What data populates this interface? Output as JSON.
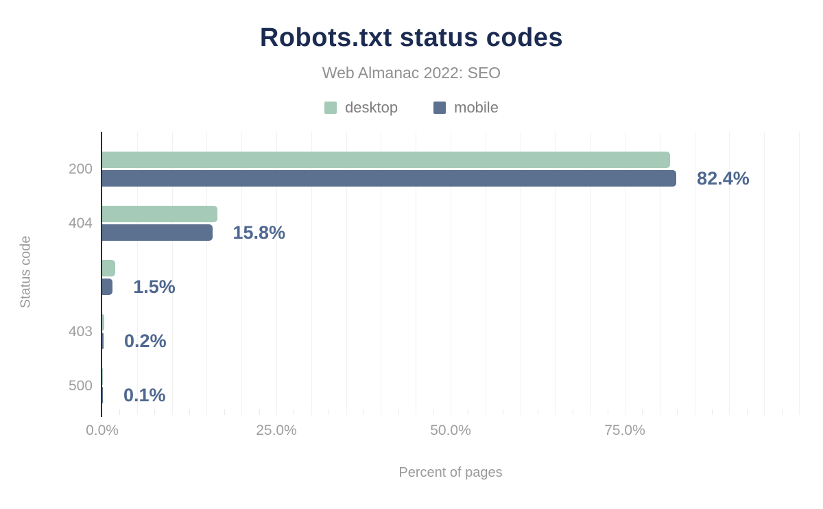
{
  "header": {
    "title": "Robots.txt status codes",
    "subtitle": "Web Almanac 2022: SEO"
  },
  "legend": [
    {
      "label": "desktop",
      "color": "#a5cab7"
    },
    {
      "label": "mobile",
      "color": "#5c7090"
    }
  ],
  "chart_data": {
    "type": "bar",
    "orientation": "horizontal",
    "title": "Robots.txt status codes",
    "subtitle": "Web Almanac 2022: SEO",
    "categories": [
      "200",
      "404",
      "",
      "403",
      "500"
    ],
    "series": [
      {
        "name": "desktop",
        "color": "#a5cab7",
        "values": [
          81.5,
          16.5,
          1.9,
          0.3,
          0.1
        ]
      },
      {
        "name": "mobile",
        "color": "#5c7090",
        "values": [
          82.4,
          15.8,
          1.5,
          0.2,
          0.1
        ]
      }
    ],
    "value_labels": {
      "series": "mobile",
      "texts": [
        "82.4%",
        "15.8%",
        "1.5%",
        "0.2%",
        "0.1%"
      ]
    },
    "xlabel": "Percent of pages",
    "ylabel": "Status code",
    "xlim": [
      0,
      100
    ],
    "x_ticks": [
      {
        "value": 0,
        "label": "0.0%"
      },
      {
        "value": 25,
        "label": "25.0%"
      },
      {
        "value": 50,
        "label": "50.0%"
      },
      {
        "value": 75,
        "label": "75.0%"
      }
    ],
    "gridline_step_percent": 5,
    "minor_tick_step_percent": 2.5,
    "grid": "vertical",
    "legend_position": "top",
    "value_label_color": "#4f6890"
  }
}
